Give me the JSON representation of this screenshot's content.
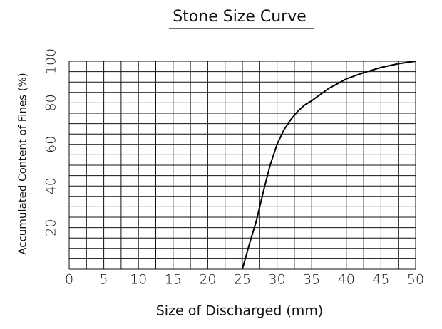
{
  "chart_data": {
    "type": "line",
    "title": "Stone Size Curve",
    "xlabel": "Size of Discharged (mm)",
    "ylabel": "Accumulated Content of Fines (%)",
    "x": [
      25,
      26,
      27,
      28,
      29,
      30,
      31,
      32,
      33,
      34,
      35,
      37.5,
      40,
      42.5,
      45,
      47.5,
      50
    ],
    "series": [
      {
        "color": "#000000",
        "values": [
          0,
          12,
          23,
          37,
          50,
          60,
          67,
          72,
          76,
          79,
          81,
          87,
          91.5,
          94.5,
          97,
          98.8,
          100
        ]
      }
    ],
    "xlim": [
      0,
      50
    ],
    "ylim": [
      0,
      100
    ],
    "xticks": [
      0,
      5,
      10,
      15,
      20,
      25,
      30,
      35,
      40,
      45,
      50
    ],
    "yticks": [
      20,
      40,
      60,
      80,
      100
    ],
    "xgrid": [
      0,
      2.5,
      5,
      7.5,
      10,
      12.5,
      15,
      17.5,
      20,
      22.5,
      25,
      27.5,
      30,
      32.5,
      35,
      37.5,
      40,
      42.5,
      45,
      47.5,
      50
    ],
    "ygrid": [
      0,
      5,
      10,
      15,
      20,
      25,
      30,
      35,
      40,
      45,
      50,
      55,
      60,
      65,
      70,
      75,
      80,
      85,
      90,
      95,
      100
    ],
    "grid": true
  }
}
